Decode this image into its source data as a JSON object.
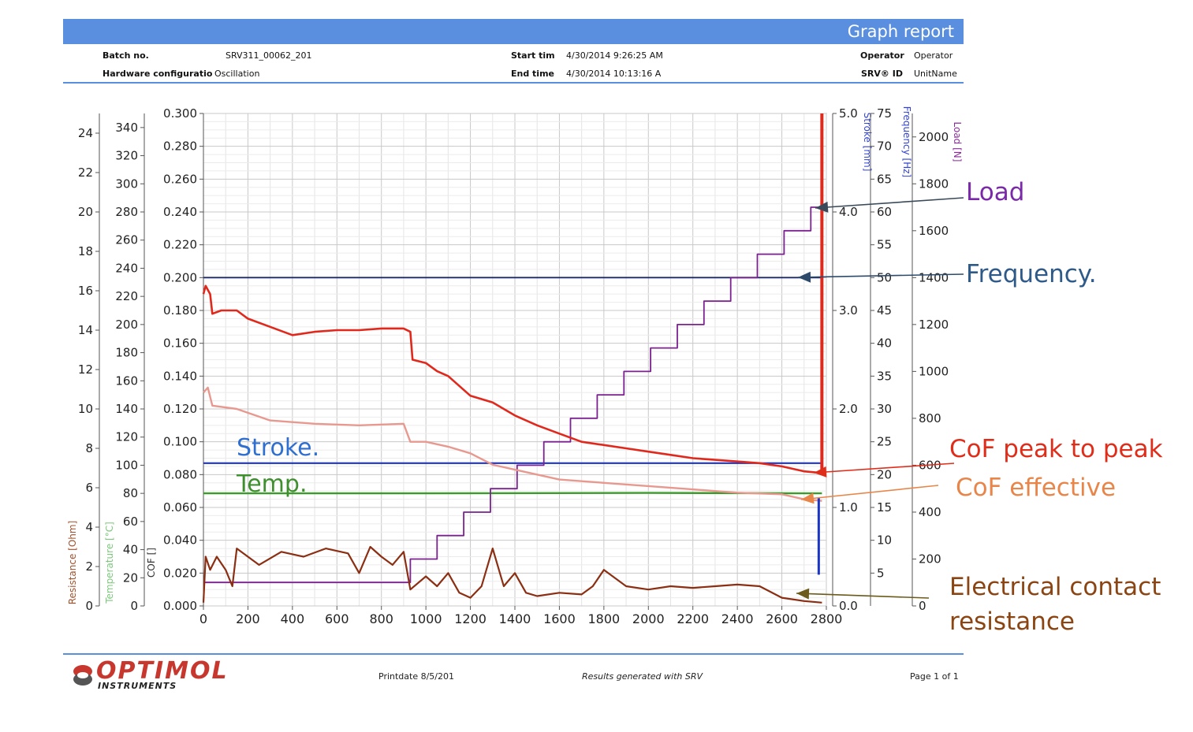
{
  "header": {
    "title": "Graph report",
    "batch_label": "Batch no.",
    "batch_value": "SRV311_00062_201",
    "hw_label": "Hardware configuratio",
    "hw_value": "Oscillation",
    "start_label": "Start tim",
    "start_value": "4/30/2014 9:26:25 AM",
    "end_label": "End time",
    "end_value": "4/30/2014 10:13:16 A",
    "operator_label": "Operator",
    "operator_value": "Operator",
    "srv_label": "SRV® ID",
    "srv_value": "UnitName"
  },
  "footer": {
    "logo": "OPTIMOL",
    "logo_sub": "INSTRUMENTS",
    "printdate": "Printdate 8/5/201",
    "generated": "Results generated with SRV",
    "page": "Page 1 of 1"
  },
  "annotations": {
    "load": "Load",
    "frequency": "Frequency.",
    "stroke": "Stroke.",
    "temp": "Temp.",
    "cof_p2p": "CoF peak to peak",
    "cof_eff": "CoF effective",
    "ecr_1": "Electrical contact",
    "ecr_2": "resistance"
  },
  "colors": {
    "header": "#5a8fe0",
    "cof_p2p": "#e0291c",
    "cof_eff": "#e8998f",
    "resistance": "#8b2e12",
    "load": "#7b2290",
    "frequency": "#1b2a6b",
    "stroke": "#1b35c8",
    "temperature": "#3a9a2a",
    "annot_load": "#7a2aa8",
    "annot_freq": "#2e5a8a",
    "annot_stroke": "#2f6fcf",
    "annot_temp": "#3f8f2f",
    "annot_p2p": "#e02d1a",
    "annot_eff": "#e8864a",
    "annot_ecr": "#8b4513"
  },
  "chart_data": {
    "type": "line",
    "x": {
      "range": [
        0,
        2800
      ],
      "ticks": [
        "0",
        "200",
        "400",
        "600",
        "800",
        "1000",
        "1200",
        "1400",
        "1600",
        "1800",
        "2000",
        "2200",
        "2400",
        "2600",
        "2800"
      ]
    },
    "axes": {
      "resistance": {
        "label": "Resistance [Ohm]",
        "range": [
          0,
          25
        ],
        "ticks": [
          "0",
          "2",
          "4",
          "6",
          "8",
          "10",
          "12",
          "14",
          "16",
          "18",
          "20",
          "22",
          "24"
        ]
      },
      "temperature": {
        "label": "Temperature [°C]",
        "range": [
          0,
          350
        ],
        "ticks": [
          "0",
          "20",
          "40",
          "60",
          "80",
          "100",
          "120",
          "140",
          "160",
          "180",
          "200",
          "220",
          "240",
          "260",
          "280",
          "300",
          "320",
          "340"
        ]
      },
      "cof": {
        "label": "COF []",
        "range": [
          0,
          0.3
        ],
        "ticks": [
          "0.000",
          "0.020",
          "0.040",
          "0.060",
          "0.080",
          "0.100",
          "0.120",
          "0.140",
          "0.160",
          "0.180",
          "0.200",
          "0.220",
          "0.240",
          "0.260",
          "0.280",
          "0.300"
        ]
      },
      "stroke": {
        "label": "Stroke [mm]",
        "range": [
          0,
          5
        ],
        "ticks": [
          "0.0",
          "1.0",
          "2.0",
          "3.0",
          "4.0",
          "5.0"
        ]
      },
      "frequency": {
        "label": "Frequency [Hz]",
        "range": [
          0,
          75
        ],
        "ticks": [
          "5",
          "10",
          "15",
          "20",
          "25",
          "30",
          "35",
          "40",
          "45",
          "50",
          "55",
          "60",
          "65",
          "70",
          "75"
        ]
      },
      "load": {
        "label": "Load [N]",
        "range": [
          0,
          2100
        ],
        "ticks": [
          "0",
          "200",
          "400",
          "600",
          "800",
          "1000",
          "1200",
          "1400",
          "1600",
          "1800",
          "2000"
        ]
      }
    },
    "series": [
      {
        "name": "CoF peak to peak",
        "axis": "cof",
        "points": [
          [
            0,
            0.19
          ],
          [
            10,
            0.195
          ],
          [
            30,
            0.19
          ],
          [
            40,
            0.178
          ],
          [
            80,
            0.18
          ],
          [
            150,
            0.18
          ],
          [
            200,
            0.175
          ],
          [
            300,
            0.17
          ],
          [
            400,
            0.165
          ],
          [
            500,
            0.167
          ],
          [
            600,
            0.168
          ],
          [
            700,
            0.168
          ],
          [
            800,
            0.169
          ],
          [
            900,
            0.169
          ],
          [
            930,
            0.167
          ],
          [
            940,
            0.15
          ],
          [
            1000,
            0.148
          ],
          [
            1050,
            0.143
          ],
          [
            1100,
            0.14
          ],
          [
            1200,
            0.128
          ],
          [
            1300,
            0.124
          ],
          [
            1350,
            0.12
          ],
          [
            1400,
            0.116
          ],
          [
            1500,
            0.11
          ],
          [
            1600,
            0.105
          ],
          [
            1700,
            0.1
          ],
          [
            1800,
            0.098
          ],
          [
            1900,
            0.096
          ],
          [
            2000,
            0.094
          ],
          [
            2100,
            0.092
          ],
          [
            2200,
            0.09
          ],
          [
            2300,
            0.089
          ],
          [
            2400,
            0.088
          ],
          [
            2500,
            0.087
          ],
          [
            2600,
            0.085
          ],
          [
            2700,
            0.082
          ],
          [
            2780,
            0.081
          ]
        ]
      },
      {
        "name": "CoF effective",
        "axis": "cof",
        "points": [
          [
            0,
            0.13
          ],
          [
            20,
            0.133
          ],
          [
            40,
            0.122
          ],
          [
            150,
            0.12
          ],
          [
            300,
            0.113
          ],
          [
            500,
            0.111
          ],
          [
            700,
            0.11
          ],
          [
            900,
            0.111
          ],
          [
            930,
            0.1
          ],
          [
            1000,
            0.1
          ],
          [
            1100,
            0.097
          ],
          [
            1200,
            0.093
          ],
          [
            1300,
            0.086
          ],
          [
            1400,
            0.083
          ],
          [
            1500,
            0.08
          ],
          [
            1600,
            0.077
          ],
          [
            1800,
            0.075
          ],
          [
            2000,
            0.073
          ],
          [
            2200,
            0.071
          ],
          [
            2400,
            0.069
          ],
          [
            2600,
            0.068
          ],
          [
            2700,
            0.065
          ],
          [
            2780,
            0.064
          ]
        ]
      },
      {
        "name": "Electrical contact resistance",
        "axis": "cof",
        "points": [
          [
            0,
            0.002
          ],
          [
            10,
            0.03
          ],
          [
            30,
            0.022
          ],
          [
            60,
            0.03
          ],
          [
            100,
            0.022
          ],
          [
            130,
            0.012
          ],
          [
            150,
            0.035
          ],
          [
            250,
            0.025
          ],
          [
            350,
            0.033
          ],
          [
            450,
            0.03
          ],
          [
            550,
            0.035
          ],
          [
            650,
            0.032
          ],
          [
            700,
            0.02
          ],
          [
            750,
            0.036
          ],
          [
            800,
            0.03
          ],
          [
            850,
            0.025
          ],
          [
            900,
            0.033
          ],
          [
            930,
            0.01
          ],
          [
            1000,
            0.018
          ],
          [
            1050,
            0.012
          ],
          [
            1100,
            0.02
          ],
          [
            1150,
            0.008
          ],
          [
            1200,
            0.005
          ],
          [
            1250,
            0.012
          ],
          [
            1300,
            0.035
          ],
          [
            1350,
            0.012
          ],
          [
            1400,
            0.02
          ],
          [
            1450,
            0.008
          ],
          [
            1500,
            0.006
          ],
          [
            1600,
            0.008
          ],
          [
            1700,
            0.007
          ],
          [
            1750,
            0.012
          ],
          [
            1800,
            0.022
          ],
          [
            1850,
            0.017
          ],
          [
            1900,
            0.012
          ],
          [
            2000,
            0.01
          ],
          [
            2100,
            0.012
          ],
          [
            2200,
            0.011
          ],
          [
            2300,
            0.012
          ],
          [
            2400,
            0.013
          ],
          [
            2500,
            0.012
          ],
          [
            2600,
            0.005
          ],
          [
            2700,
            0.003
          ],
          [
            2780,
            0.002
          ]
        ]
      },
      {
        "name": "Load",
        "axis": "load",
        "step": true,
        "points": [
          [
            0,
            100
          ],
          [
            50,
            100
          ],
          [
            930,
            100
          ],
          [
            930,
            200
          ],
          [
            1050,
            200
          ],
          [
            1050,
            300
          ],
          [
            1170,
            300
          ],
          [
            1170,
            400
          ],
          [
            1290,
            400
          ],
          [
            1290,
            500
          ],
          [
            1410,
            500
          ],
          [
            1410,
            600
          ],
          [
            1530,
            600
          ],
          [
            1530,
            700
          ],
          [
            1650,
            700
          ],
          [
            1650,
            800
          ],
          [
            1770,
            800
          ],
          [
            1770,
            900
          ],
          [
            1890,
            900
          ],
          [
            1890,
            1000
          ],
          [
            2010,
            1000
          ],
          [
            2010,
            1100
          ],
          [
            2130,
            1100
          ],
          [
            2130,
            1200
          ],
          [
            2250,
            1200
          ],
          [
            2250,
            1300
          ],
          [
            2370,
            1300
          ],
          [
            2370,
            1400
          ],
          [
            2490,
            1400
          ],
          [
            2490,
            1500
          ],
          [
            2610,
            1500
          ],
          [
            2610,
            1600
          ],
          [
            2730,
            1600
          ],
          [
            2730,
            1700
          ],
          [
            2780,
            1700
          ]
        ]
      },
      {
        "name": "Frequency",
        "axis": "frequency",
        "points": [
          [
            0,
            50
          ],
          [
            2780,
            50
          ]
        ]
      },
      {
        "name": "Stroke",
        "axis": "stroke",
        "points": [
          [
            0,
            1.45
          ],
          [
            2780,
            1.45
          ]
        ]
      },
      {
        "name": "Temperature",
        "axis": "temperature",
        "points": [
          [
            0,
            80
          ],
          [
            1000,
            80
          ],
          [
            2000,
            80.3
          ],
          [
            2780,
            80
          ]
        ]
      }
    ]
  }
}
